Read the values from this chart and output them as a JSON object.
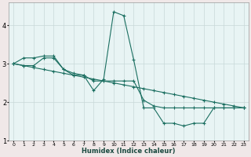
{
  "xlabel": "Humidex (Indice chaleur)",
  "bg_color": "#f0e8e8",
  "plot_bg_color": "#e8f4f4",
  "grid_color": "#c8d8d8",
  "line_color": "#1a6e60",
  "xlim": [
    -0.5,
    23.5
  ],
  "ylim": [
    1.0,
    4.6
  ],
  "xtick_labels": [
    "0",
    "1",
    "2",
    "3",
    "4",
    "5",
    "6",
    "7",
    "8",
    "9",
    "10",
    "11",
    "12",
    "13",
    "14",
    "15",
    "16",
    "17",
    "18",
    "19",
    "20",
    "21",
    "22",
    "23"
  ],
  "yticks": [
    1,
    2,
    3,
    4
  ],
  "series": [
    {
      "x": [
        0,
        1,
        2,
        3,
        4,
        5,
        6,
        7,
        8,
        9,
        10,
        11,
        12,
        13,
        14,
        15,
        16,
        17,
        18,
        19,
        20,
        21,
        22,
        23
      ],
      "y": [
        3.0,
        3.15,
        3.15,
        3.2,
        3.2,
        2.85,
        2.7,
        2.7,
        2.3,
        2.6,
        4.35,
        4.25,
        3.1,
        1.85,
        1.85,
        1.45,
        1.45,
        1.38,
        1.45,
        1.45,
        1.85,
        1.85,
        1.85,
        1.85
      ]
    },
    {
      "x": [
        0,
        1,
        2,
        3,
        4,
        5,
        6,
        7,
        8,
        9,
        10,
        11,
        12,
        13,
        14,
        15,
        16,
        17,
        18,
        19,
        20,
        21,
        22,
        23
      ],
      "y": [
        3.0,
        2.95,
        2.9,
        2.85,
        2.8,
        2.75,
        2.7,
        2.65,
        2.6,
        2.55,
        2.5,
        2.45,
        2.4,
        2.35,
        2.3,
        2.25,
        2.2,
        2.15,
        2.1,
        2.05,
        2.0,
        1.95,
        1.9,
        1.85
      ]
    },
    {
      "x": [
        0,
        1,
        2,
        3,
        4,
        5,
        6,
        7,
        8,
        9,
        10,
        11,
        12,
        13,
        14,
        15,
        16,
        17,
        18,
        19,
        20,
        21,
        22,
        23
      ],
      "y": [
        3.0,
        2.95,
        2.95,
        3.15,
        3.15,
        2.85,
        2.75,
        2.7,
        2.55,
        2.55,
        2.55,
        2.55,
        2.55,
        2.05,
        1.9,
        1.85,
        1.85,
        1.85,
        1.85,
        1.85,
        1.85,
        1.85,
        1.85,
        1.85
      ]
    }
  ]
}
